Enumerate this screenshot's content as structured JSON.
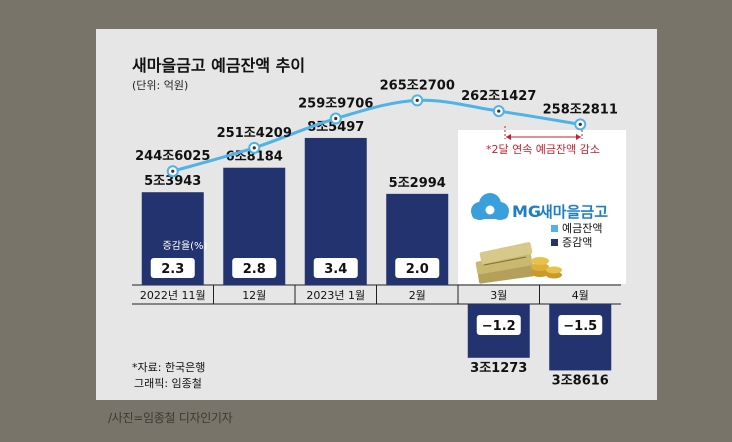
{
  "chart_data": {
    "type": "bar+line",
    "title": "새마을금고 예금잔액 추이",
    "unit": "(단위: 억원)",
    "categories": [
      "2022년 11월",
      "12월",
      "2023년 1월",
      "2월",
      "3월",
      "4월"
    ],
    "line_series": {
      "name": "예금잔액",
      "values": [
        2446025,
        2514209,
        2599706,
        2652700,
        2621427,
        2582811
      ],
      "labels": [
        "244조6025",
        "251조4209",
        "259조9706",
        "265조2700",
        "262조1427",
        "258조2811"
      ]
    },
    "bar_series": {
      "name": "증감액",
      "values": [
        53943,
        68184,
        85497,
        52994,
        -31273,
        -38616
      ],
      "labels": [
        "5조3943",
        "6조8184",
        "8조5497",
        "5조2994",
        "3조1273",
        "3조8616"
      ]
    },
    "rate_series": {
      "name": "증감율(%)",
      "values": [
        2.3,
        2.8,
        3.4,
        2.0,
        -1.2,
        -1.5
      ],
      "labels": [
        "2.3",
        "2.8",
        "3.4",
        "2.0",
        "−1.2",
        "−1.5"
      ]
    },
    "rate_label": "증감율(%)",
    "annotation": "*2달 연속 예금잔액 감소",
    "legend": [
      {
        "name": "예금잔액",
        "color": "#4fb3e8"
      },
      {
        "name": "증감액",
        "color": "#23336f"
      }
    ],
    "brand": {
      "mark": "MG",
      "name": "새마을금고"
    },
    "sources": [
      "*자료: 한국은행",
      "그래픽: 임종철"
    ]
  },
  "colors": {
    "bar": "#23336f",
    "line": "#4fb3e8",
    "accent": "#c4202d",
    "brand": "#1f7ec4"
  },
  "caption": "/사진=임종철 디자인기자"
}
